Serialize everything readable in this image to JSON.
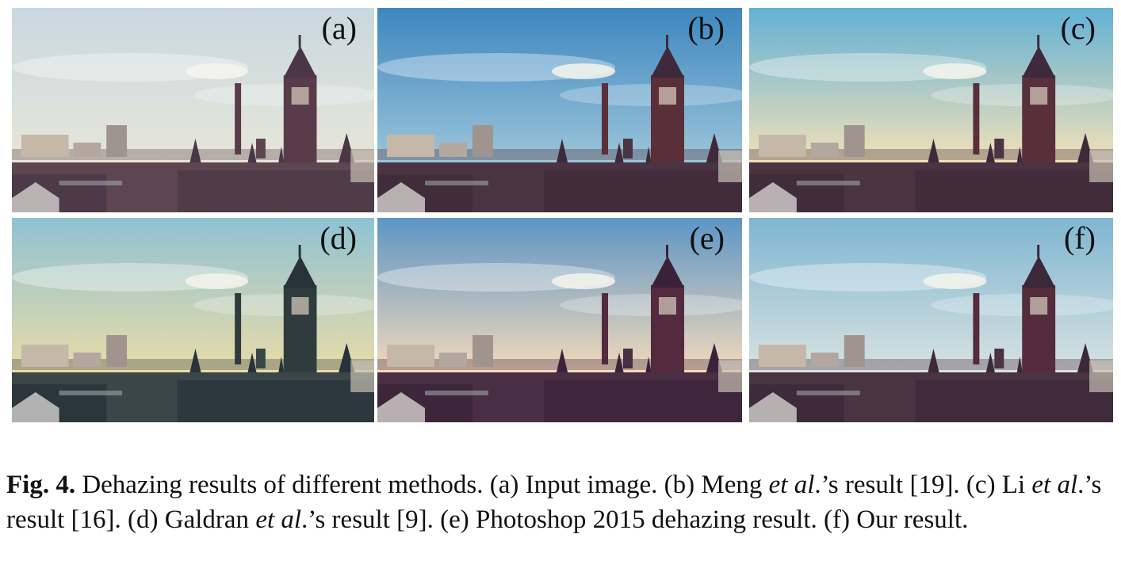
{
  "figure": {
    "panels": [
      {
        "label": "(a)",
        "description": "Input image",
        "sky_top": "#c9d8df",
        "sky_bottom": "#e6e6d8",
        "tower": "#5a3b49",
        "roof": "#4a3646",
        "buildings": "#5e4650"
      },
      {
        "label": "(b)",
        "description": "Meng et al. result",
        "sky_top": "#3d87c0",
        "sky_bottom": "#9cc4d9",
        "tower": "#5b2f3a",
        "roof": "#3e2a3a",
        "buildings": "#4a3442"
      },
      {
        "label": "(c)",
        "description": "Li et al. result",
        "sky_top": "#63b1d6",
        "sky_bottom": "#f1e1b8",
        "tower": "#5a2f3c",
        "roof": "#3f2a3b",
        "buildings": "#4b3342"
      },
      {
        "label": "(d)",
        "description": "Galdran et al. result",
        "sky_top": "#8fc2d3",
        "sky_bottom": "#e8dca8",
        "tower": "#2f3c3e",
        "roof": "#27323a",
        "buildings": "#3a4648"
      },
      {
        "label": "(e)",
        "description": "Photoshop 2015 dehazing result",
        "sky_top": "#5d95c6",
        "sky_bottom": "#f2d9bb",
        "tower": "#532a3e",
        "roof": "#3a2338",
        "buildings": "#4a2e44"
      },
      {
        "label": "(f)",
        "description": "Our result",
        "sky_top": "#7fb6d2",
        "sky_bottom": "#d8e2e0",
        "tower": "#542c3c",
        "roof": "#3b283a",
        "buildings": "#4a3442"
      }
    ],
    "caption": {
      "fig_label": "Fig. 4.",
      "p1": " Dehazing results of different methods. (a) Input image. (b) Meng ",
      "etal1": "et al",
      "p2": ".’s result [19]. (c) Li ",
      "etal2": "et al",
      "p3": ".’s result [16]. (d) Galdran ",
      "etal3": "et al",
      "p4": ".’s result [9]. (e) Photoshop 2015 dehazing result. (f) Our result."
    }
  }
}
